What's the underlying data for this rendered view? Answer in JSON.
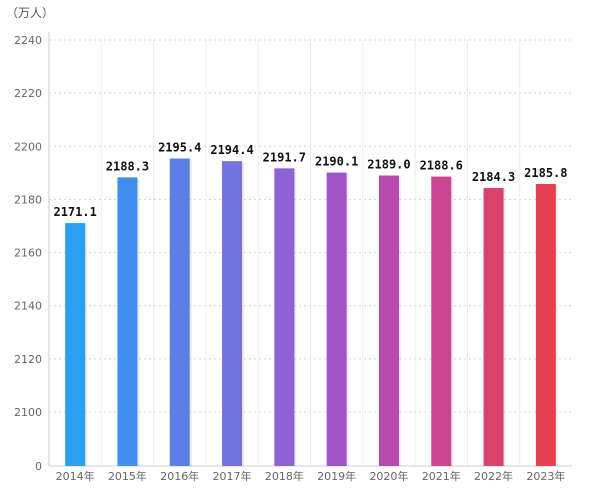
{
  "chart_data": {
    "type": "bar",
    "unit_label": "（万人）",
    "categories": [
      "2014年",
      "2015年",
      "2016年",
      "2017年",
      "2018年",
      "2019年",
      "2020年",
      "2021年",
      "2022年",
      "2023年"
    ],
    "values": [
      2171.1,
      2188.3,
      2195.4,
      2194.4,
      2191.7,
      2190.1,
      2189.0,
      2188.6,
      2184.3,
      2185.8
    ],
    "value_labels": [
      "2171.1",
      "2188.3",
      "2195.4",
      "2194.4",
      "2191.7",
      "2190.1",
      "2189.0",
      "2188.6",
      "2184.3",
      "2185.8"
    ],
    "y_ticks": [
      2100,
      2120,
      2140,
      2160,
      2180,
      2200,
      2220,
      2240
    ],
    "y_tick_labels": [
      "2100",
      "2120",
      "2140",
      "2160",
      "2180",
      "2200",
      "2220",
      "2240"
    ],
    "y_zero_label": "0",
    "ylim": [
      2100,
      2240
    ],
    "axis_break": true,
    "grid": true,
    "colors": [
      "#2aa0ef",
      "#3f8ef0",
      "#5a80e6",
      "#7472df",
      "#8e62d4",
      "#a254c6",
      "#b84bb0",
      "#cb4590",
      "#d9446c",
      "#e5404f"
    ]
  }
}
